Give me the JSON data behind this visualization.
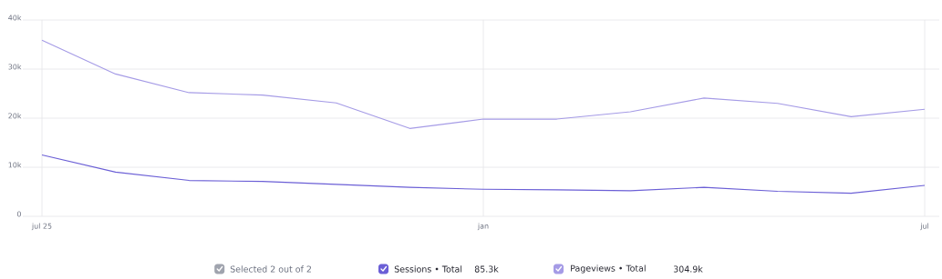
{
  "chart_data": {
    "type": "line",
    "categories": [
      "jul 25",
      null,
      null,
      null,
      null,
      null,
      "jan",
      null,
      null,
      null,
      null,
      null,
      "jul"
    ],
    "series": [
      {
        "name": "Sessions • Total",
        "color": "#6b5fd6",
        "values": [
          12.5,
          9.0,
          7.3,
          7.1,
          6.5,
          5.9,
          5.5,
          5.4,
          5.2,
          5.9,
          5.1,
          4.7,
          6.3
        ]
      },
      {
        "name": "Pageviews • Total",
        "color": "#a59be6",
        "values": [
          35.9,
          29.0,
          25.2,
          24.7,
          23.1,
          17.9,
          19.8,
          19.8,
          21.3,
          24.1,
          23.0,
          20.3,
          21.8
        ]
      }
    ],
    "ylim": [
      0,
      40
    ],
    "yticks": [
      0,
      {
        "value": 10,
        "label": "10k"
      },
      {
        "value": 20,
        "label": "20k"
      },
      {
        "value": 30,
        "label": "30k"
      },
      {
        "value": 40,
        "label": "40k"
      }
    ],
    "grid": true,
    "legend": "bottom",
    "annotations": [
      "Selected 2 out of 2",
      "85.3k",
      "304.9k"
    ]
  }
}
